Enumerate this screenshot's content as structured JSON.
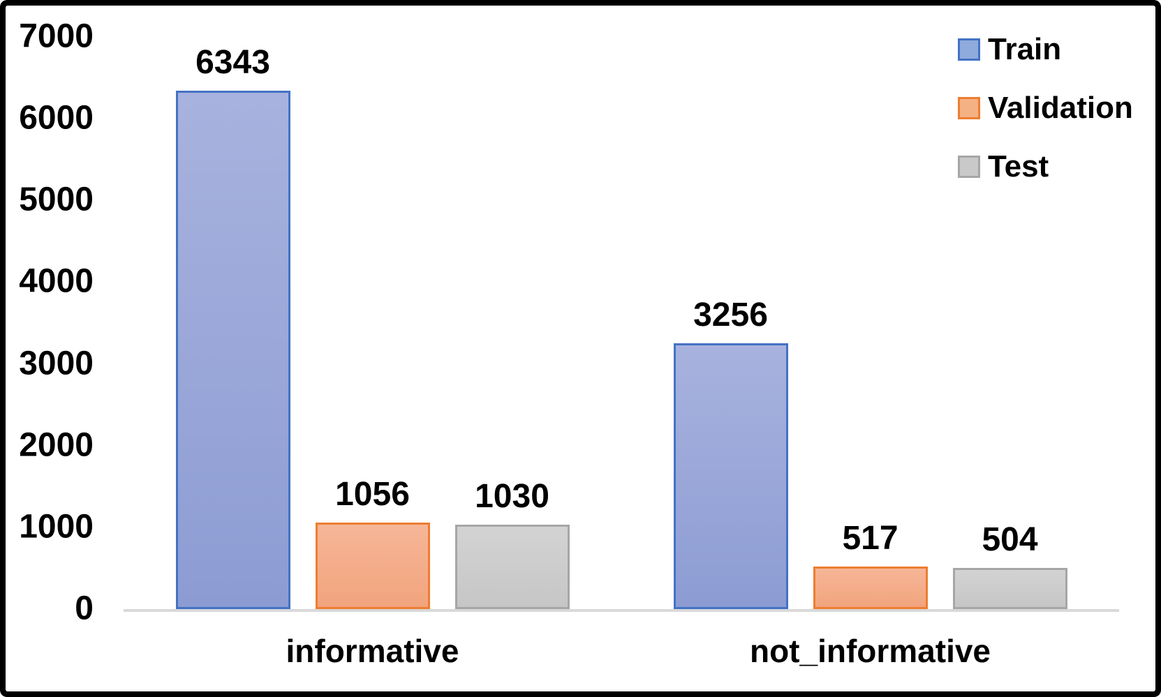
{
  "chart_data": {
    "type": "bar",
    "title": "",
    "xlabel": "",
    "ylabel": "",
    "categories": [
      "informative",
      "not_informative"
    ],
    "series": [
      {
        "name": "Train",
        "values": [
          6343,
          3256
        ],
        "fill_top": "#A8B2DE",
        "fill_bottom": "#8C9CD3",
        "border": "#4472C4",
        "legend_fill": "#8FAADC"
      },
      {
        "name": "Validation",
        "values": [
          1056,
          517
        ],
        "fill_top": "#F6B698",
        "fill_bottom": "#F1A47D",
        "border": "#ED7D31",
        "legend_fill": "#F4B183"
      },
      {
        "name": "Test",
        "values": [
          1030,
          504
        ],
        "fill_top": "#D3D3D3",
        "fill_bottom": "#C6C6C6",
        "border": "#A6A6A6",
        "legend_fill": "#C9C9C9"
      }
    ],
    "ylim": [
      0,
      7000
    ],
    "yticks": [
      0,
      1000,
      2000,
      3000,
      4000,
      5000,
      6000,
      7000
    ],
    "grid": "off",
    "legend_position": "top-right",
    "axis_color": "#D9D9D9",
    "text_color": "#000000",
    "frame_color": "#000000",
    "background_color": "#FFFFFF"
  }
}
